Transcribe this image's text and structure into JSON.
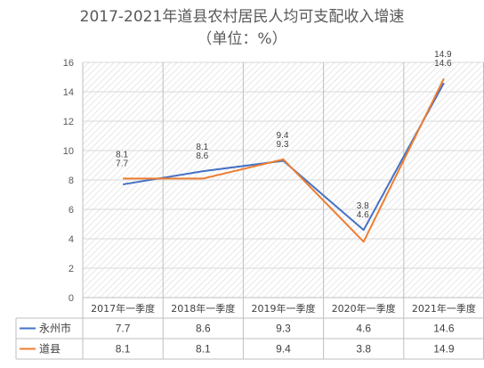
{
  "chart_data": {
    "type": "line",
    "title": "2017-2021年道县农村居民人均可支配收入增速",
    "subtitle": "（单位：%）",
    "categories": [
      "2017年一季度",
      "2018年一季度",
      "2019年一季度",
      "2020年一季度",
      "2021年一季度"
    ],
    "series": [
      {
        "name": "永州市",
        "values": [
          7.7,
          8.6,
          9.3,
          4.6,
          14.6
        ],
        "color": "#4472C4"
      },
      {
        "name": "道县",
        "values": [
          8.1,
          8.1,
          9.4,
          3.8,
          14.9
        ],
        "color": "#ED7D31"
      }
    ],
    "ylim": [
      0,
      16
    ],
    "yticks": [
      0,
      2,
      4,
      6,
      8,
      10,
      12,
      14,
      16
    ],
    "grid": true,
    "data_table": true,
    "xlabel": "",
    "ylabel": ""
  }
}
